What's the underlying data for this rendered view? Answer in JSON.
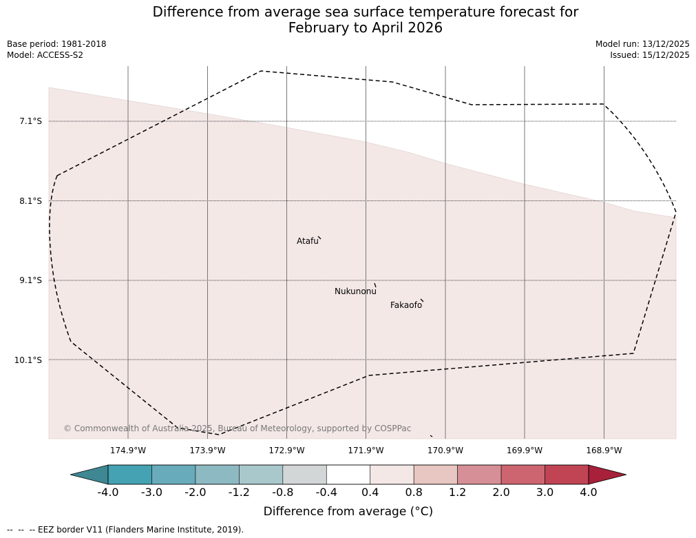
{
  "title": {
    "line1": "Difference from average sea surface temperature forecast for",
    "line2": "February to April 2026"
  },
  "meta_left": {
    "base_period": "Base period: 1981-2018",
    "model": "Model: ACCESS-S2"
  },
  "meta_right": {
    "model_run": "Model run: 13/12/2025",
    "issued": "Issued: 15/12/2025"
  },
  "map": {
    "latitude_labels": [
      "7.1°S",
      "8.1°S",
      "9.1°S",
      "10.1°S"
    ],
    "longitude_labels": [
      "174.9°W",
      "173.9°W",
      "172.9°W",
      "171.9°W",
      "170.9°W",
      "169.9°W",
      "168.9°W"
    ],
    "places": [
      "Atafu",
      "Nukunonu",
      "Fakaofo"
    ],
    "copyright": "© Commonwealth of Australia 2025, Bureau of Meteorology, supported by COSPPac",
    "anomaly_fill_color": "#f4e8e7",
    "anomaly_fill_class": "0.4 to 0.8"
  },
  "colorbar": {
    "title": "Difference from average (°C)",
    "ticks": [
      "-4.0",
      "-3.0",
      "-2.0",
      "-1.2",
      "-0.8",
      "-0.4",
      "0.4",
      "0.8",
      "1.2",
      "2.0",
      "3.0",
      "4.0"
    ],
    "colors": [
      "#44a2b3",
      "#68acbb",
      "#8db9c2",
      "#a9c8cc",
      "#d2d6d6",
      "#ffffff",
      "#f4e8e7",
      "#e8c6c1",
      "#d68f96",
      "#cd6570",
      "#c04454"
    ],
    "low_extend_color": "#3e8793",
    "high_extend_color": "#a8213a"
  },
  "footer": "--  --  -- EEZ border V11 (Flanders Marine Institute, 2019)."
}
